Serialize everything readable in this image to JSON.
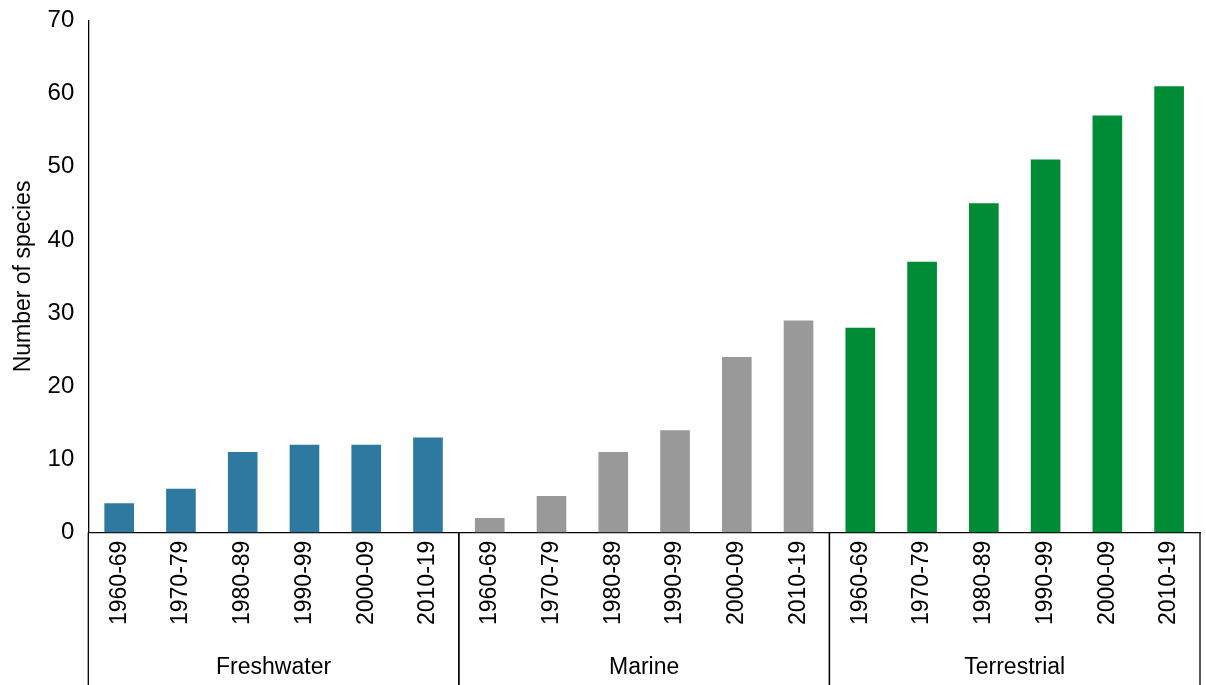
{
  "chart_data": {
    "type": "bar",
    "ylabel": "Number of species",
    "categories": [
      "1960-69",
      "1970-79",
      "1980-89",
      "1990-99",
      "2000-09",
      "2010-19",
      "1960-69",
      "1970-79",
      "1980-89",
      "1990-99",
      "2000-09",
      "2010-19",
      "1960-69",
      "1970-79",
      "1980-89",
      "1990-99",
      "2000-09",
      "2010-19"
    ],
    "series": [
      {
        "color": "#2e79a0",
        "values": [
          4,
          6,
          11,
          12,
          12,
          13,
          null,
          null,
          null,
          null,
          null,
          null,
          null,
          null,
          null,
          null,
          null,
          null
        ]
      },
      {
        "color": "#999999",
        "values": [
          null,
          null,
          null,
          null,
          null,
          null,
          2,
          5,
          11,
          14,
          24,
          29,
          null,
          null,
          null,
          null,
          null,
          null
        ]
      },
      {
        "color": "#008b36",
        "values": [
          null,
          null,
          null,
          null,
          null,
          null,
          null,
          null,
          null,
          null,
          null,
          null,
          28,
          37,
          45,
          51,
          57,
          61
        ]
      }
    ],
    "ylim": [
      0,
      70
    ],
    "yticks": [
      0,
      10,
      20,
      30,
      40,
      50,
      60,
      70
    ],
    "grid": false,
    "legend": false,
    "annotations": [
      "Freshwater",
      "Marine",
      "Terrestrial"
    ]
  }
}
